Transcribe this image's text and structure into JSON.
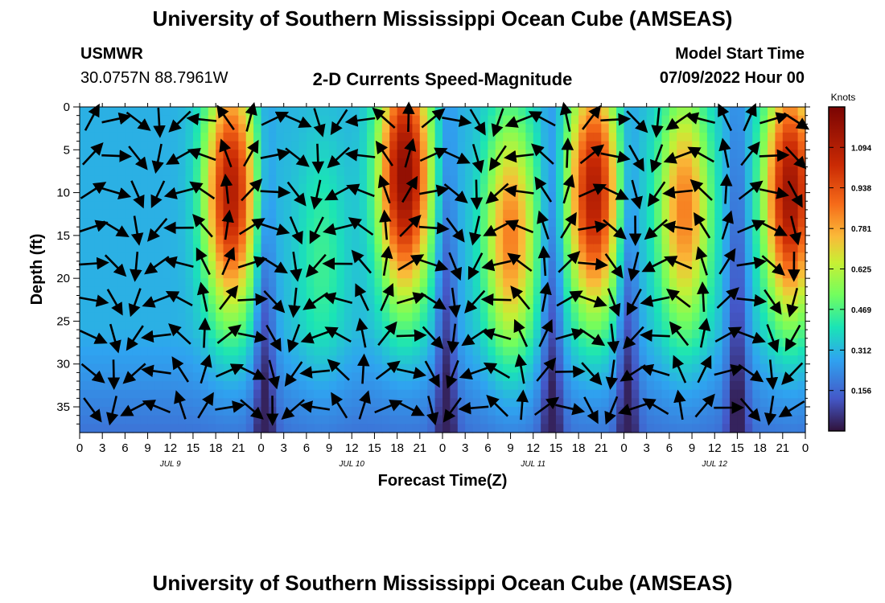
{
  "header": {
    "title": "University of Southern Mississippi Ocean Cube (AMSEAS)",
    "station": "USMWR",
    "location": "30.0757N  88.7961W",
    "subtitle": "2-D Currents Speed-Magnitude",
    "model_label": "Model Start Time",
    "model_time": "07/09/2022 Hour 00"
  },
  "footer": {
    "title": "University of Southern Mississippi Ocean Cube (AMSEAS)"
  },
  "chart_data": {
    "type": "heatmap",
    "title": "2-D Currents Speed-Magnitude",
    "xlabel": "Forecast Time(Z)",
    "ylabel": "Depth (ft)",
    "x_range_hours": [
      0,
      96
    ],
    "ylim": [
      0,
      38
    ],
    "x_tick_labels": [
      "0",
      "3",
      "6",
      "9",
      "12",
      "15",
      "18",
      "21",
      "0",
      "3",
      "6",
      "9",
      "12",
      "15",
      "18",
      "21",
      "0",
      "3",
      "6",
      "9",
      "12",
      "15",
      "18",
      "21",
      "0",
      "3",
      "6",
      "9",
      "12",
      "15",
      "18",
      "21",
      "0"
    ],
    "day_labels": [
      {
        "label": "JUL 9",
        "hour": 12
      },
      {
        "label": "JUL 10",
        "hour": 36
      },
      {
        "label": "JUL 11",
        "hour": 60
      },
      {
        "label": "JUL 12",
        "hour": 84
      }
    ],
    "y_ticks": [
      0,
      5,
      10,
      15,
      20,
      25,
      30,
      35
    ],
    "colorbar": {
      "unit": "Knots",
      "range": [
        0.0,
        1.25
      ],
      "ticks": [
        "1.094",
        "0.938",
        "0.781",
        "0.625",
        "0.469",
        "0.312",
        "0.156"
      ],
      "tick_values": [
        1.094,
        0.938,
        0.781,
        0.625,
        0.469,
        0.312,
        0.156
      ]
    },
    "speed_peaks": [
      {
        "hour": 20,
        "depth": 10,
        "speed": 1.1
      },
      {
        "hour": 32,
        "depth": 18,
        "speed": 0.45
      },
      {
        "hour": 43,
        "depth": 8,
        "speed": 1.2
      },
      {
        "hour": 57,
        "depth": 15,
        "speed": 0.85
      },
      {
        "hour": 68,
        "depth": 10,
        "speed": 1.1
      },
      {
        "hour": 80,
        "depth": 12,
        "speed": 0.85
      },
      {
        "hour": 94,
        "depth": 10,
        "speed": 1.15
      }
    ],
    "speed_minima": [
      {
        "hour": 24.5,
        "speed": 0.15
      },
      {
        "hour": 48.5,
        "speed": 0.15
      },
      {
        "hour": 62.5,
        "speed": 0.15
      },
      {
        "hour": 72.5,
        "speed": 0.15
      },
      {
        "hour": 87,
        "speed": 0.15
      }
    ]
  }
}
